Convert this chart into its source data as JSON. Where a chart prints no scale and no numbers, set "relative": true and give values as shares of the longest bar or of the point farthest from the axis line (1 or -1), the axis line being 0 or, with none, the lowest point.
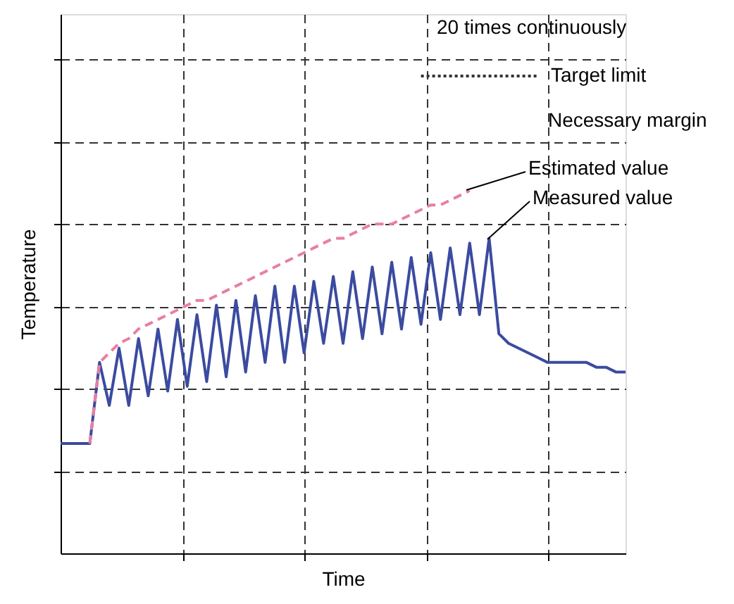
{
  "chart_data": {
    "type": "line",
    "relative": true,
    "xlabel": "Time",
    "ylabel": "Temperature",
    "grid": true,
    "categories": [
      null,
      null,
      null,
      null,
      null,
      null,
      null,
      null,
      null,
      null,
      null,
      null,
      null,
      null,
      null,
      null,
      null,
      null,
      null,
      null,
      null,
      null,
      null,
      null,
      null,
      null,
      null,
      null,
      null,
      null,
      null,
      null,
      null,
      null,
      null,
      null,
      null,
      null,
      null,
      null,
      null,
      null,
      null,
      null,
      null,
      null,
      null,
      null,
      null,
      null,
      null,
      null,
      null,
      null,
      null,
      null,
      null,
      null,
      null
    ],
    "series": [
      {
        "color": "#3b4ba0",
        "line_style": "solid",
        "values": [
          0.23,
          0.23,
          0.23,
          0.23,
          0.4,
          0.31,
          0.43,
          0.31,
          0.45,
          0.33,
          0.47,
          0.34,
          0.49,
          0.35,
          0.5,
          0.36,
          0.52,
          0.37,
          0.53,
          0.38,
          0.54,
          0.4,
          0.56,
          0.4,
          0.56,
          0.42,
          0.57,
          0.44,
          0.58,
          0.44,
          0.59,
          0.45,
          0.6,
          0.46,
          0.61,
          0.47,
          0.62,
          0.48,
          0.63,
          0.49,
          0.64,
          0.5,
          0.65,
          0.5,
          0.66,
          0.46,
          0.44,
          0.43,
          0.42,
          0.41,
          0.4,
          0.4,
          0.4,
          0.4,
          0.4,
          0.39,
          0.39,
          0.38,
          0.38
        ]
      },
      {
        "color": "#e87fa0",
        "line_style": "dashed",
        "values": [
          null,
          null,
          null,
          0.23,
          0.4,
          0.42,
          0.44,
          0.45,
          0.47,
          0.48,
          0.49,
          0.5,
          0.51,
          0.52,
          0.53,
          0.53,
          0.54,
          0.55,
          0.56,
          0.57,
          0.58,
          0.59,
          0.6,
          0.61,
          0.62,
          0.63,
          0.64,
          0.65,
          0.66,
          0.66,
          0.67,
          0.68,
          0.69,
          0.69,
          0.69,
          0.7,
          0.71,
          0.72,
          0.73,
          0.73,
          0.74,
          0.75,
          0.76,
          null,
          null,
          null,
          null,
          null,
          null,
          null,
          null,
          null,
          null,
          null,
          null,
          null,
          null,
          null,
          null
        ]
      },
      {
        "color": "#333333",
        "line_style": "dotted",
        "values": [
          null,
          null,
          null,
          null,
          null,
          null,
          null,
          null,
          null,
          null,
          null,
          null,
          null,
          null,
          null,
          null,
          null,
          null,
          null,
          null,
          null,
          null,
          null,
          null,
          null,
          null,
          null,
          null,
          null,
          null,
          null,
          null,
          null,
          null,
          null,
          null,
          null,
          1.0,
          1.0,
          1.0,
          1.0,
          1.0,
          1.0,
          1.0,
          1.0,
          1.0,
          1.0,
          1.0,
          1.0,
          1.0,
          null,
          null,
          null,
          null,
          null,
          null,
          null,
          null,
          null
        ]
      }
    ],
    "annotations": [
      "20 times continuously",
      "Target limit",
      "Necessary margin",
      "Estimated value",
      "Measured value"
    ]
  }
}
